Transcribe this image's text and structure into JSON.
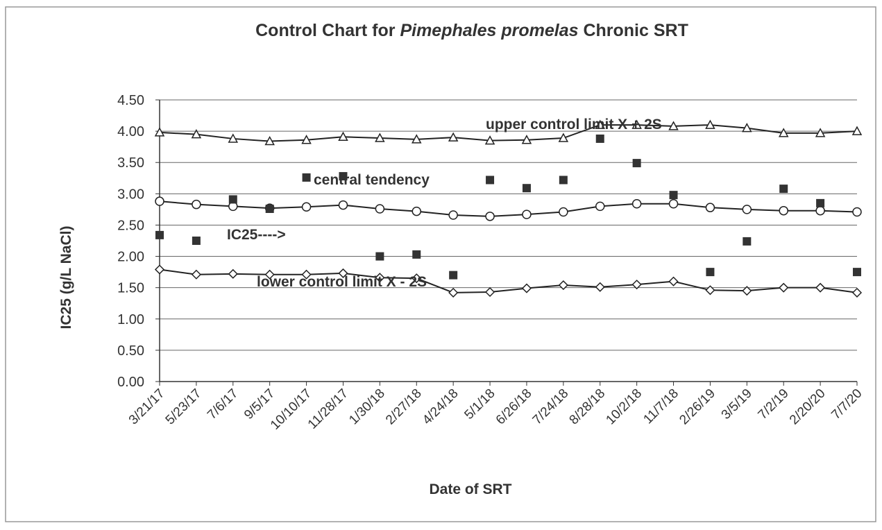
{
  "chart_data": {
    "type": "line",
    "title": [
      "Control Chart for ",
      "Pimephales promelas",
      " Chronic SRT"
    ],
    "xlabel": "Date of SRT",
    "ylabel": "IC25 (g/L NaCl)",
    "categories": [
      "3/21/17",
      "5/23/17",
      "7/6/17",
      "9/5/17",
      "10/10/17",
      "11/28/17",
      "1/30/18",
      "2/27/18",
      "4/24/18",
      "5/1/18",
      "6/26/18",
      "7/24/18",
      "8/28/18",
      "10/2/18",
      "11/7/18",
      "2/26/19",
      "3/5/19",
      "7/2/19",
      "2/20/20",
      "7/7/20"
    ],
    "ylim": [
      0,
      4.5
    ],
    "yticks": [
      {
        "value": 0,
        "label": "0.00"
      },
      {
        "value": 0.5,
        "label": "0.50"
      },
      {
        "value": 1,
        "label": "1.00"
      },
      {
        "value": 1.5,
        "label": "1.50"
      },
      {
        "value": 2,
        "label": "2.00"
      },
      {
        "value": 2.5,
        "label": "2.50"
      },
      {
        "value": 3,
        "label": "3.00"
      },
      {
        "value": 3.5,
        "label": "3.50"
      },
      {
        "value": 4,
        "label": "4.00"
      },
      {
        "value": 4.5,
        "label": "4.50"
      }
    ],
    "grid": true,
    "series": [
      {
        "name": "upper control limit X + 2S",
        "color": "#222222",
        "marker": "triangle",
        "line": true,
        "values": [
          3.98,
          3.95,
          3.88,
          3.84,
          3.86,
          3.91,
          3.89,
          3.87,
          3.9,
          3.85,
          3.86,
          3.89,
          4.1,
          4.1,
          4.08,
          4.1,
          4.05,
          3.97,
          3.97,
          4.0
        ]
      },
      {
        "name": "central tendency",
        "color": "#222222",
        "marker": "circle",
        "line": true,
        "values": [
          2.88,
          2.83,
          2.8,
          2.77,
          2.79,
          2.82,
          2.76,
          2.72,
          2.66,
          2.64,
          2.67,
          2.71,
          2.8,
          2.84,
          2.84,
          2.78,
          2.75,
          2.73,
          2.73,
          2.71
        ]
      },
      {
        "name": "IC25---->",
        "color": "#333333",
        "marker": "square",
        "line": false,
        "values": [
          2.34,
          2.25,
          2.91,
          2.76,
          3.26,
          3.28,
          2.0,
          2.03,
          1.7,
          3.22,
          3.09,
          3.22,
          3.88,
          3.49,
          2.98,
          1.75,
          2.24,
          3.08,
          2.85,
          1.75
        ]
      },
      {
        "name": "lower control limit X - 2S",
        "color": "#222222",
        "marker": "diamond",
        "line": true,
        "values": [
          1.79,
          1.71,
          1.72,
          1.71,
          1.71,
          1.73,
          1.66,
          1.65,
          1.42,
          1.43,
          1.49,
          1.54,
          1.51,
          1.55,
          1.6,
          1.46,
          1.45,
          1.5,
          1.5,
          1.42
        ]
      }
    ]
  }
}
